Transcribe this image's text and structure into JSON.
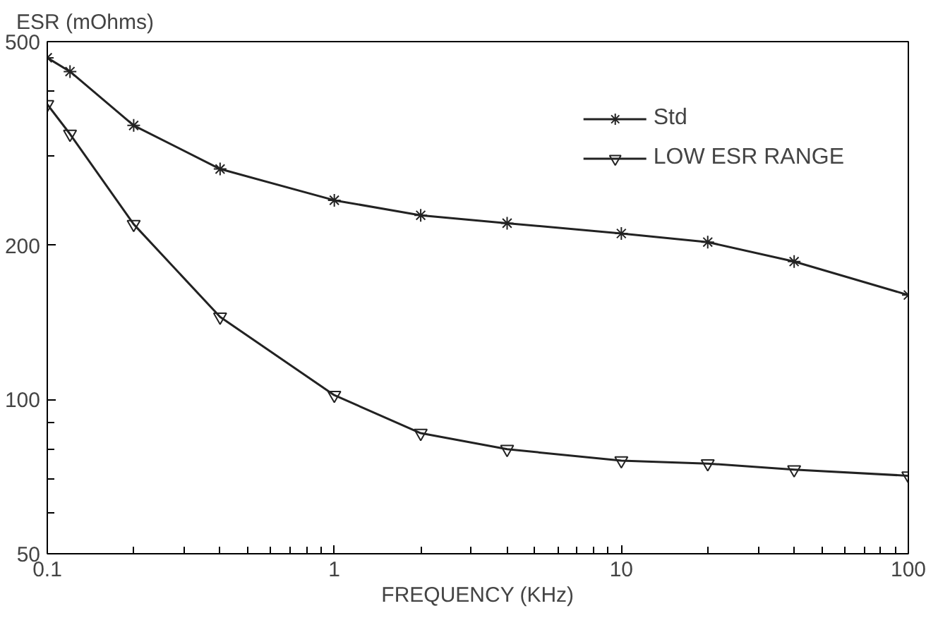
{
  "chart_data": {
    "type": "line",
    "ylabel": "ESR (mOhms)",
    "xlabel": "FREQUENCY (KHz)",
    "log": "xy",
    "xlim": [
      0.1,
      100
    ],
    "ylim": [
      50,
      500
    ],
    "xticks": [
      0.1,
      1,
      10,
      100
    ],
    "yticks": [
      50,
      100,
      200,
      500
    ],
    "grid": false,
    "legend": "top right",
    "line_style": "solid",
    "x": [
      0.1,
      0.12,
      0.2,
      0.4,
      1,
      2,
      4,
      10,
      20,
      40,
      100
    ],
    "series": [
      {
        "name": "Std",
        "color": "#222222",
        "marker": "cross",
        "values": [
          465,
          437,
          343,
          282,
          245,
          229,
          221,
          211,
          203,
          186,
          160
        ]
      },
      {
        "name": "LOW ESR RANGE",
        "color": "#222222",
        "marker": "triangle",
        "values": [
          377,
          330,
          220,
          145,
          102,
          86,
          80,
          76,
          75,
          73,
          71
        ]
      }
    ]
  }
}
